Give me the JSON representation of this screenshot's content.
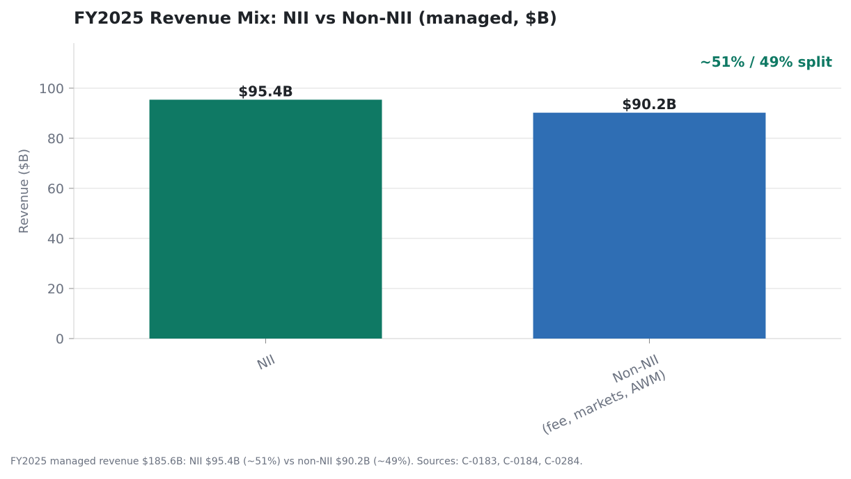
{
  "chart_data": {
    "type": "bar",
    "title": "FY2025 Revenue Mix: NII vs Non-NII (managed, $B)",
    "xlabel": "",
    "ylabel": "Revenue ($B)",
    "ylim": [
      0,
      118
    ],
    "yticks": [
      0,
      20,
      40,
      60,
      80,
      100
    ],
    "grid": true,
    "categories": [
      {
        "line1": "NII",
        "line2": ""
      },
      {
        "line1": "Non-NII",
        "line2": "(fee, markets, AWM)"
      }
    ],
    "values": [
      95.4,
      90.2
    ],
    "data_labels": [
      "$95.4B",
      "$90.2B"
    ],
    "colors": [
      "#0f7964",
      "#2f6eb4"
    ],
    "annotation": "~51% / 49% split",
    "annotation_color": "#0f7964"
  },
  "footnote": "FY2025 managed revenue $185.6B: NII $95.4B (~51%) vs non-NII $90.2B (~49%). Sources: C-0183, C-0184, C-0284."
}
